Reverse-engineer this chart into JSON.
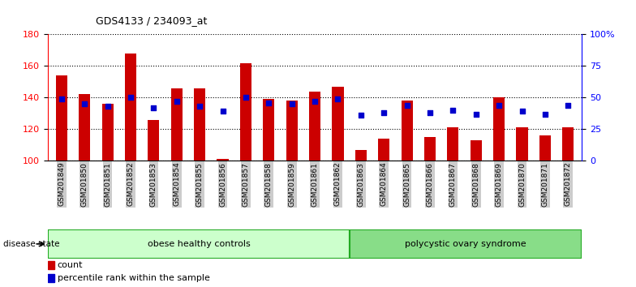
{
  "title": "GDS4133 / 234093_at",
  "samples": [
    "GSM201849",
    "GSM201850",
    "GSM201851",
    "GSM201852",
    "GSM201853",
    "GSM201854",
    "GSM201855",
    "GSM201856",
    "GSM201857",
    "GSM201858",
    "GSM201859",
    "GSM201861",
    "GSM201862",
    "GSM201863",
    "GSM201864",
    "GSM201865",
    "GSM201866",
    "GSM201867",
    "GSM201868",
    "GSM201869",
    "GSM201870",
    "GSM201871",
    "GSM201872"
  ],
  "counts": [
    154,
    142,
    136,
    168,
    126,
    146,
    146,
    101,
    162,
    139,
    138,
    144,
    147,
    107,
    114,
    138,
    115,
    121,
    113,
    140,
    121,
    116,
    121
  ],
  "percentiles": [
    49,
    45,
    43,
    50,
    42,
    47,
    43,
    39,
    50,
    46,
    45,
    47,
    49,
    36,
    38,
    44,
    38,
    40,
    37,
    44,
    39,
    37,
    44
  ],
  "group1_label": "obese healthy controls",
  "group1_count": 13,
  "group2_label": "polycystic ovary syndrome",
  "group2_count": 10,
  "disease_state_label": "disease state",
  "bar_color": "#cc0000",
  "dot_color": "#0000cc",
  "ylim_left": [
    100,
    180
  ],
  "ylim_right": [
    0,
    100
  ],
  "yticks_left": [
    100,
    120,
    140,
    160,
    180
  ],
  "yticks_right": [
    0,
    25,
    50,
    75,
    100
  ],
  "ytick_labels_right": [
    "0",
    "25",
    "50",
    "75",
    "100%"
  ],
  "legend_count_label": "count",
  "legend_pct_label": "percentile rank within the sample",
  "group1_color": "#ccffcc",
  "group2_color": "#88dd88",
  "group_edge_color": "#22aa22",
  "tick_label_bg": "#cccccc"
}
